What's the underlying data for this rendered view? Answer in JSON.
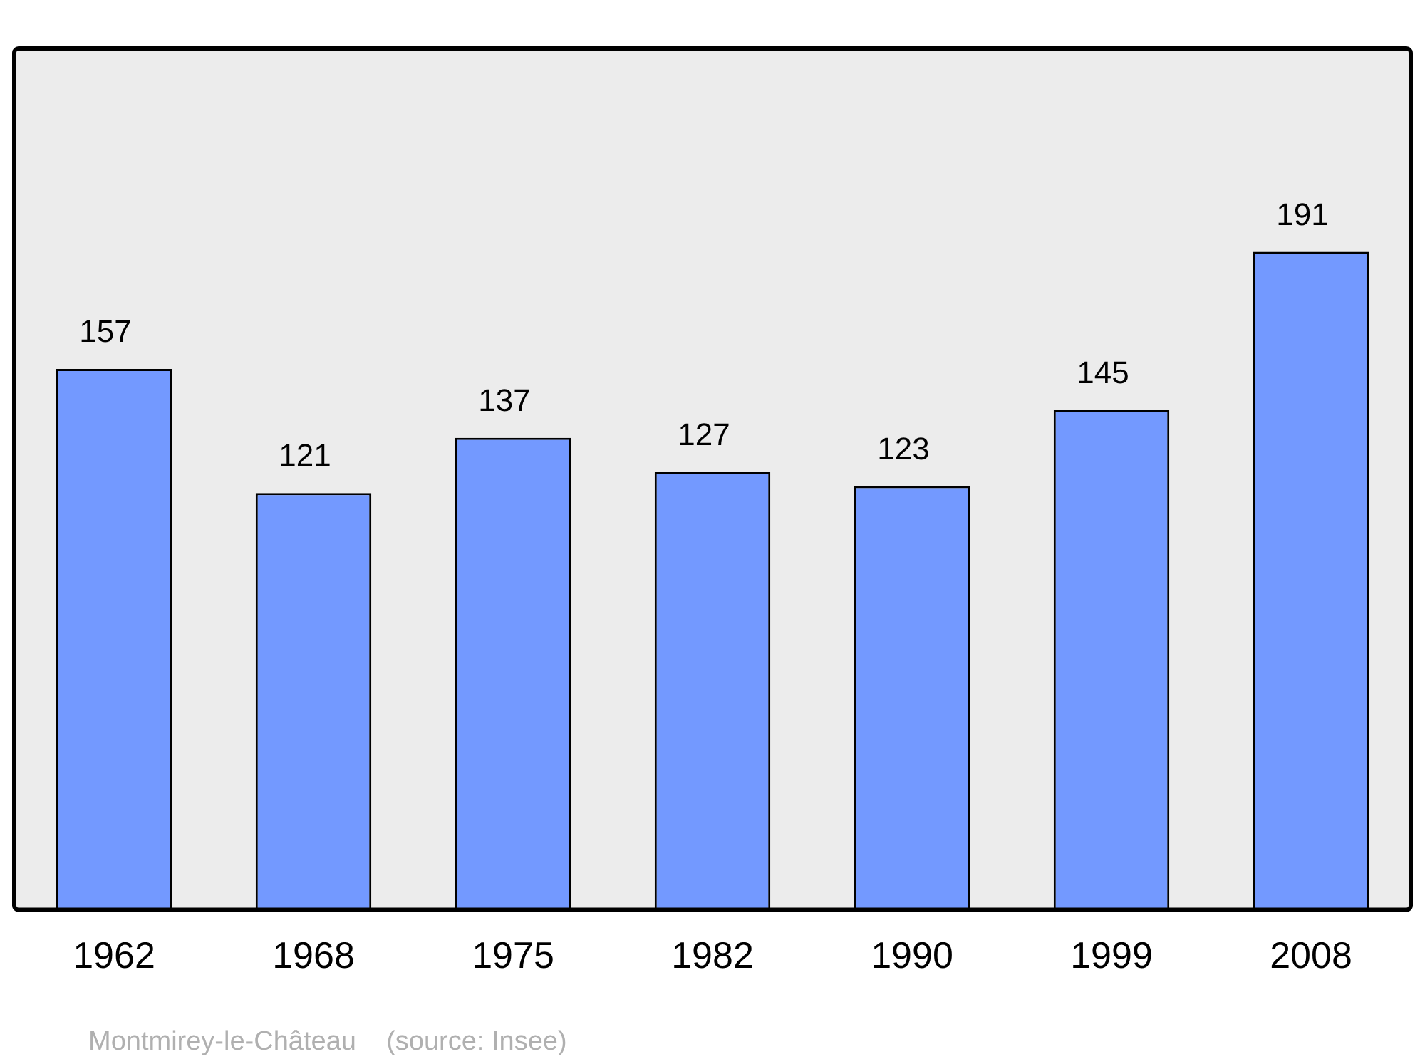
{
  "chart_data": {
    "type": "bar",
    "categories": [
      "1962",
      "1968",
      "1975",
      "1982",
      "1990",
      "1999",
      "2008"
    ],
    "values": [
      157,
      121,
      137,
      127,
      123,
      145,
      191
    ],
    "color": "#7399ff",
    "data_labels": true,
    "grid": false,
    "legend": false,
    "annotations": [
      "Montmirey-le-Château    (source: Insee)"
    ]
  }
}
